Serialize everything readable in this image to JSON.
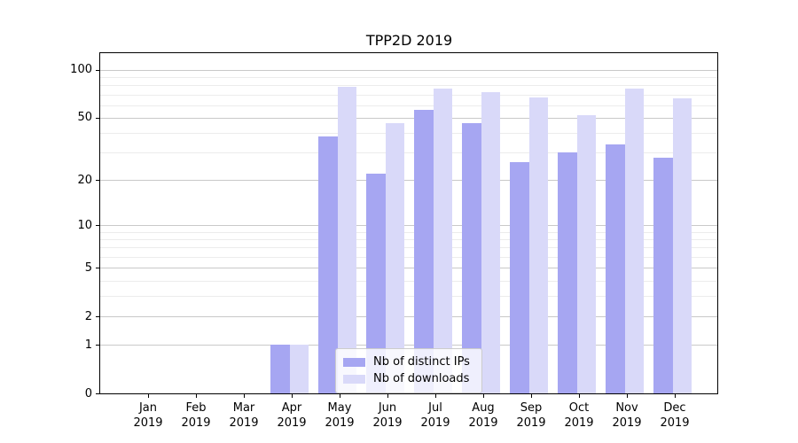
{
  "title": "TPP2D 2019",
  "chart_data": {
    "type": "bar",
    "title": "TPP2D 2019",
    "categories": [
      "Jan 2019",
      "Feb 2019",
      "Mar 2019",
      "Apr 2019",
      "May 2019",
      "Jun 2019",
      "Jul 2019",
      "Aug 2019",
      "Sep 2019",
      "Oct 2019",
      "Nov 2019",
      "Dec 2019"
    ],
    "series": [
      {
        "name": "Nb of distinct IPs",
        "color": "#a6a6f2",
        "values": [
          0,
          0,
          0,
          1,
          38,
          22,
          56,
          46,
          26,
          30,
          34,
          28
        ]
      },
      {
        "name": "Nb of downloads",
        "color": "#d9d9f9",
        "values": [
          0,
          0,
          0,
          1,
          78,
          46,
          76,
          72,
          67,
          52,
          76,
          66
        ]
      }
    ],
    "yscale": "log10(value+1)",
    "yticks_major": [
      0,
      1,
      2,
      5,
      10,
      20,
      50,
      100
    ],
    "yticks_minor": [
      3,
      4,
      6,
      7,
      8,
      9,
      30,
      40,
      60,
      70,
      80,
      90
    ],
    "ylim": [
      0,
      127
    ],
    "xlabel": "",
    "ylabel": "",
    "grid": true,
    "legend_position": "lower center"
  },
  "legend": {
    "items": [
      {
        "label": "Nb of distinct IPs"
      },
      {
        "label": "Nb of downloads"
      }
    ]
  },
  "colors": {
    "bar_distinct_ips": "#a6a6f2",
    "bar_downloads": "#d9d9f9",
    "grid_major": "#c9c9c9",
    "grid_minor": "#ececec",
    "axis": "#000000",
    "background": "#ffffff"
  }
}
